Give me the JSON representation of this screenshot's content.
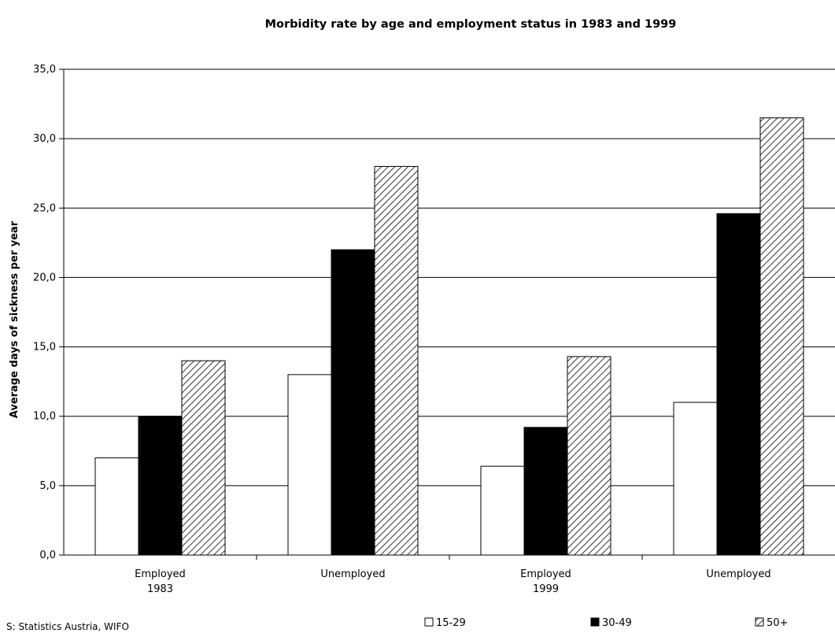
{
  "chart_data": {
    "type": "bar",
    "title": "Morbidity rate by age and employment status in 1983 and 1999",
    "ylabel": "Average days of sickness per year",
    "xlabel": "",
    "ylim": [
      0,
      35
    ],
    "yticks": [
      "0,0",
      "5,0",
      "10,0",
      "15,0",
      "20,0",
      "25,0",
      "30,0",
      "35,0"
    ],
    "categories": [
      {
        "line1": "Employed",
        "line2": "1983"
      },
      {
        "line1": "Unemployed",
        "line2": ""
      },
      {
        "line1": "Employed",
        "line2": "1999"
      },
      {
        "line1": "Unemployed",
        "line2": ""
      }
    ],
    "series": [
      {
        "name": "15-29",
        "fill": "white",
        "values": [
          7.0,
          13.0,
          6.4,
          11.0
        ]
      },
      {
        "name": "30-49",
        "fill": "black",
        "values": [
          10.0,
          22.0,
          9.2,
          24.6
        ]
      },
      {
        "name": "50+",
        "fill": "hatched",
        "values": [
          14.0,
          28.0,
          14.3,
          31.5
        ]
      }
    ],
    "grid": true,
    "legend_position": "bottom",
    "source": "S: Statistics Austria, WIFO"
  },
  "colors": {
    "axis": "#000000",
    "bar_white": "#ffffff",
    "bar_black": "#000000",
    "hatch": "#000000"
  }
}
